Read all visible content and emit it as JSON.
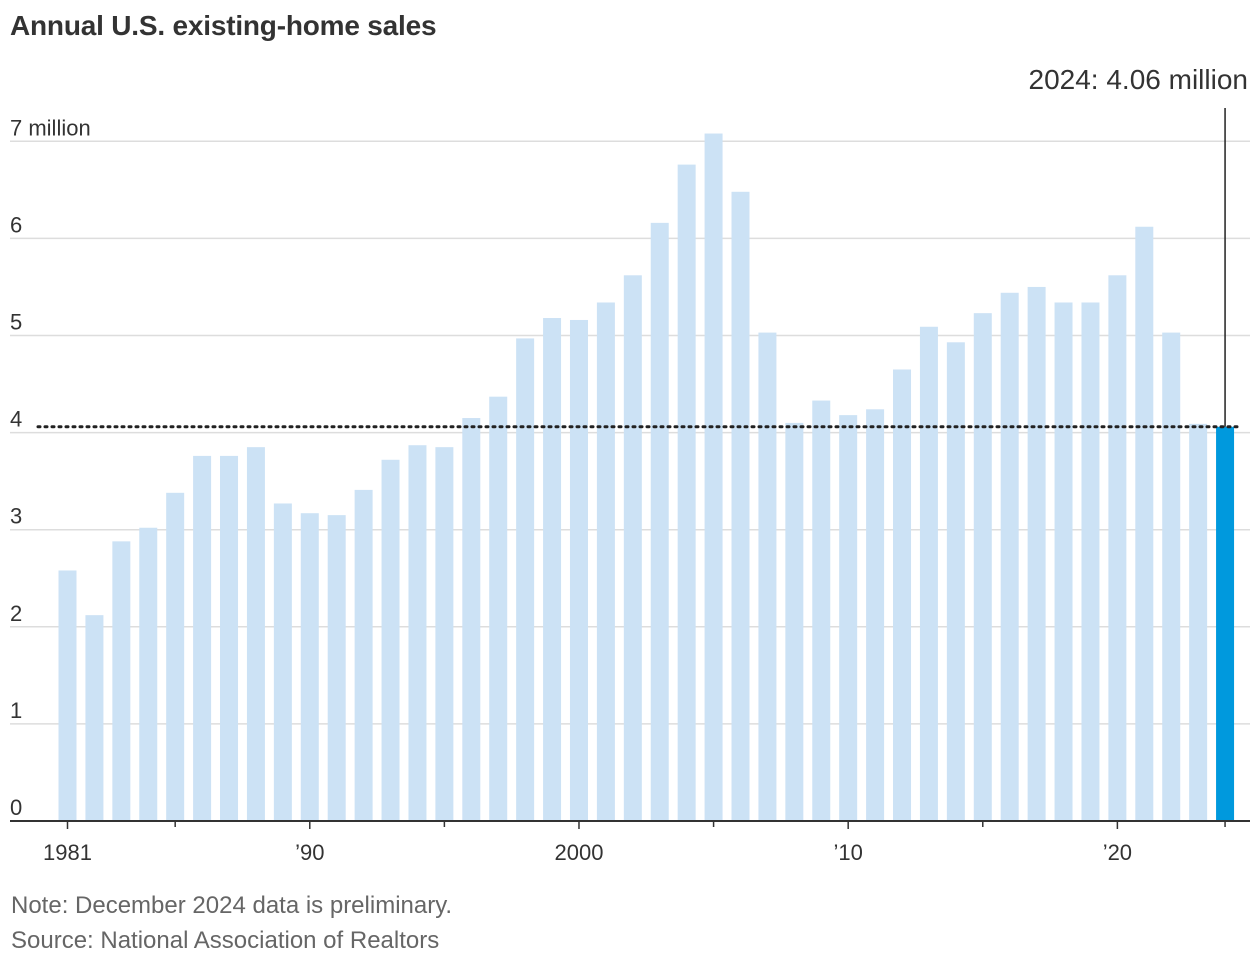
{
  "title": "Annual U.S. existing-home sales",
  "note": "Note: December 2024 data is preliminary.",
  "source": "Source: National Association of Realtors",
  "colors": {
    "bar": "#cce2f5",
    "highlight_bar": "#0099dd",
    "gridline": "#dddddd",
    "axis": "#333333",
    "text": "#333333"
  },
  "chart_data": {
    "type": "bar",
    "title": "Annual U.S. existing-home sales",
    "xlabel": "",
    "ylabel": "",
    "unit": "million",
    "ylim": [
      0,
      7
    ],
    "y_ticks": [
      {
        "value": 0,
        "label": "0"
      },
      {
        "value": 1,
        "label": "1"
      },
      {
        "value": 2,
        "label": "2"
      },
      {
        "value": 3,
        "label": "3"
      },
      {
        "value": 4,
        "label": "4"
      },
      {
        "value": 5,
        "label": "5"
      },
      {
        "value": 6,
        "label": "6"
      },
      {
        "value": 7,
        "label": "7 million"
      }
    ],
    "x_ticks": [
      {
        "year": 1981,
        "label": "1981"
      },
      {
        "year": 1990,
        "label": "’90"
      },
      {
        "year": 2000,
        "label": "2000"
      },
      {
        "year": 2010,
        "label": "’10"
      },
      {
        "year": 2020,
        "label": "’20"
      }
    ],
    "minor_tick_years": [
      1985,
      1995,
      2005,
      2015,
      2024
    ],
    "categories": [
      1981,
      1982,
      1983,
      1984,
      1985,
      1986,
      1987,
      1988,
      1989,
      1990,
      1991,
      1992,
      1993,
      1994,
      1995,
      1996,
      1997,
      1998,
      1999,
      2000,
      2001,
      2002,
      2003,
      2004,
      2005,
      2006,
      2007,
      2008,
      2009,
      2010,
      2011,
      2012,
      2013,
      2014,
      2015,
      2016,
      2017,
      2018,
      2019,
      2020,
      2021,
      2022,
      2023,
      2024
    ],
    "values": [
      2.58,
      2.12,
      2.88,
      3.02,
      3.38,
      3.76,
      3.76,
      3.85,
      3.27,
      3.17,
      3.15,
      3.41,
      3.72,
      3.87,
      3.85,
      4.15,
      4.37,
      4.97,
      5.18,
      5.16,
      5.34,
      5.62,
      6.16,
      6.76,
      7.08,
      6.48,
      5.03,
      4.1,
      4.33,
      4.18,
      4.24,
      4.65,
      5.09,
      4.93,
      5.23,
      5.44,
      5.5,
      5.34,
      5.34,
      5.62,
      6.12,
      5.03,
      4.09,
      4.06
    ],
    "highlight": {
      "year": 2024,
      "value": 4.06,
      "label": "2024: 4.06 million",
      "reference_line": "dotted"
    },
    "grid": true
  }
}
